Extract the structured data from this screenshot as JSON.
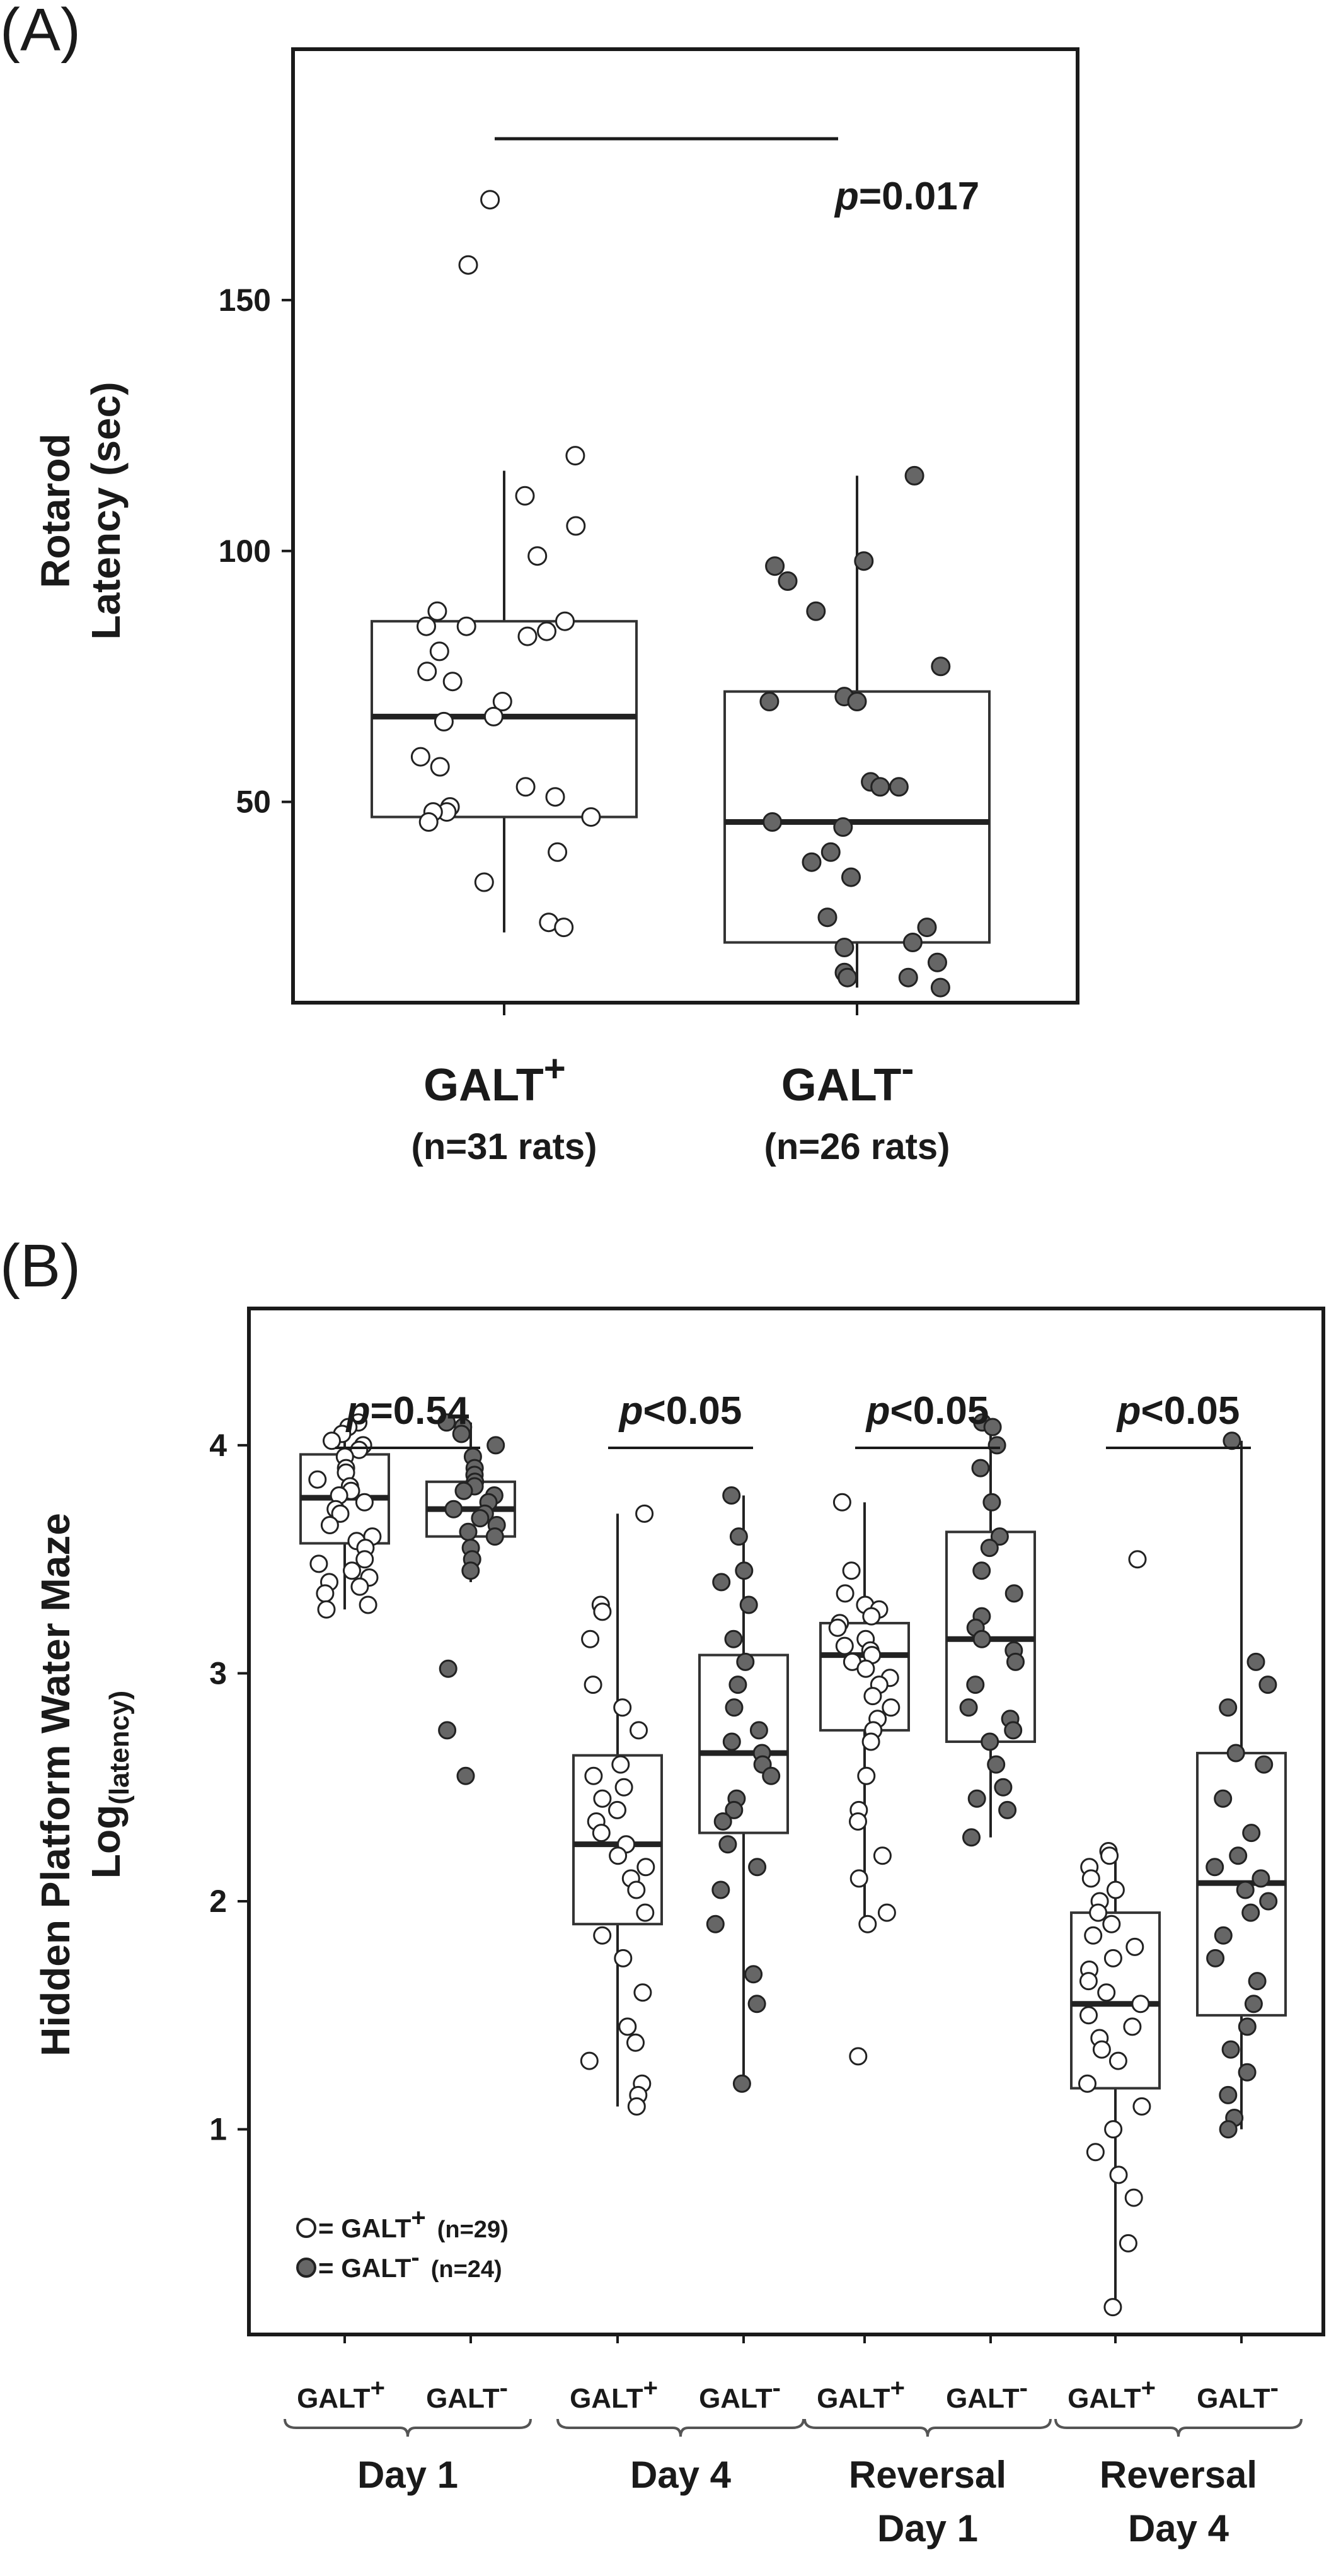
{
  "chart_data": [
    {
      "panel": "(A)",
      "type": "box-scatter",
      "ylabel_line1": "Rotarod",
      "ylabel_line2": "Latency (sec)",
      "yticks": [
        50,
        100,
        150
      ],
      "ylim": [
        10,
        200
      ],
      "pvalue": {
        "italic": "p",
        "rest": "=0.017"
      },
      "groups": [
        {
          "label": "GALT",
          "sup": "+",
          "n_label": "(n=31 rats)",
          "fill": "#ffffff",
          "box": {
            "q1": 47,
            "median": 67,
            "q3": 86,
            "whisker_low": 24,
            "whisker_high": 116
          },
          "points": [
            170,
            157,
            119,
            111,
            105,
            99,
            88,
            86,
            85,
            85,
            84,
            83,
            80,
            76,
            74,
            70,
            67,
            66,
            59,
            57,
            53,
            51,
            49,
            48,
            48,
            47,
            46,
            40,
            34,
            26,
            25
          ]
        },
        {
          "label": "GALT",
          "sup": "-",
          "n_label": "(n=26 rats)",
          "fill": "#666666",
          "box": {
            "q1": 22,
            "median": 46,
            "q3": 72,
            "whisker_low": 13,
            "whisker_high": 115
          },
          "points": [
            115,
            98,
            97,
            94,
            88,
            77,
            71,
            70,
            70,
            54,
            53,
            53,
            46,
            45,
            40,
            38,
            35,
            27,
            25,
            22,
            21,
            18,
            16,
            15,
            15,
            13
          ]
        }
      ]
    },
    {
      "panel": "(B)",
      "type": "box-scatter",
      "ylabel_line1": "Hidden Platform Water Maze",
      "ylabel_line2_main": "Log",
      "ylabel_line2_sub": "(latency)",
      "yticks": [
        1,
        2,
        3,
        4
      ],
      "ylim": [
        0.1,
        4.6
      ],
      "legend": [
        {
          "label": "= GALT",
          "sup": "+",
          "n": "(n=29)",
          "fill": "#ffffff"
        },
        {
          "label": "= GALT",
          "sup": "-",
          "n": "(n=24)",
          "fill": "#666666"
        }
      ],
      "days": [
        {
          "line1": "Day 1",
          "line2": "",
          "pvalue": {
            "italic": "p",
            "rest": "=0.54"
          },
          "boxes": [
            {
              "label": "GALT",
              "sup": "+",
              "fill": "#ffffff",
              "box": {
                "q1": 3.57,
                "median": 3.77,
                "q3": 3.96,
                "whisker_low": 3.28,
                "whisker_high": 4.1
              },
              "points": [
                4.1,
                4.08,
                4.05,
                4.02,
                4.0,
                3.98,
                3.95,
                3.9,
                3.88,
                3.85,
                3.82,
                3.8,
                3.78,
                3.75,
                3.72,
                3.7,
                3.65,
                3.6,
                3.58,
                3.55,
                3.5,
                3.48,
                3.45,
                3.42,
                3.4,
                3.38,
                3.35,
                3.3,
                3.28
              ]
            },
            {
              "label": "GALT",
              "sup": "-",
              "fill": "#666666",
              "box": {
                "q1": 3.6,
                "median": 3.72,
                "q3": 3.84,
                "whisker_low": 3.4,
                "whisker_high": 4.1
              },
              "points": [
                4.1,
                4.08,
                4.05,
                4.0,
                3.95,
                3.9,
                3.87,
                3.84,
                3.82,
                3.8,
                3.78,
                3.75,
                3.72,
                3.7,
                3.68,
                3.65,
                3.62,
                3.6,
                3.55,
                3.5,
                3.45,
                3.02,
                2.75,
                2.55
              ]
            }
          ]
        },
        {
          "line1": "Day 4",
          "line2": "",
          "pvalue": {
            "italic": "p",
            "rest": "<0.05"
          },
          "boxes": [
            {
              "label": "GALT",
              "sup": "+",
              "fill": "#ffffff",
              "box": {
                "q1": 1.9,
                "median": 2.25,
                "q3": 2.64,
                "whisker_low": 1.1,
                "whisker_high": 3.7
              },
              "points": [
                3.7,
                3.3,
                3.27,
                3.15,
                2.95,
                2.85,
                2.75,
                2.6,
                2.55,
                2.5,
                2.45,
                2.4,
                2.35,
                2.3,
                2.25,
                2.2,
                2.15,
                2.1,
                2.05,
                1.95,
                1.85,
                1.75,
                1.6,
                1.45,
                1.38,
                1.3,
                1.2,
                1.15,
                1.1
              ]
            },
            {
              "label": "GALT",
              "sup": "-",
              "fill": "#666666",
              "box": {
                "q1": 2.3,
                "median": 2.65,
                "q3": 3.08,
                "whisker_low": 1.2,
                "whisker_high": 3.78
              },
              "points": [
                3.78,
                3.6,
                3.45,
                3.4,
                3.3,
                3.15,
                3.05,
                2.95,
                2.85,
                2.75,
                2.7,
                2.65,
                2.6,
                2.55,
                2.45,
                2.4,
                2.35,
                2.25,
                2.15,
                2.05,
                1.9,
                1.68,
                1.55,
                1.2
              ]
            }
          ]
        },
        {
          "line1": "Reversal",
          "line2": "Day 1",
          "pvalue": {
            "italic": "p",
            "rest": "<0.05"
          },
          "boxes": [
            {
              "label": "GALT",
              "sup": "+",
              "fill": "#ffffff",
              "box": {
                "q1": 2.75,
                "median": 3.08,
                "q3": 3.22,
                "whisker_low": 1.9,
                "whisker_high": 3.75
              },
              "points": [
                3.75,
                3.45,
                3.35,
                3.3,
                3.28,
                3.25,
                3.22,
                3.2,
                3.15,
                3.12,
                3.1,
                3.08,
                3.05,
                3.02,
                2.98,
                2.95,
                2.9,
                2.85,
                2.8,
                2.75,
                2.7,
                2.55,
                2.4,
                2.35,
                2.2,
                2.1,
                1.95,
                1.9,
                1.32
              ]
            },
            {
              "label": "GALT",
              "sup": "-",
              "fill": "#666666",
              "box": {
                "q1": 2.7,
                "median": 3.15,
                "q3": 3.62,
                "whisker_low": 2.28,
                "whisker_high": 4.1
              },
              "points": [
                4.1,
                4.08,
                4.0,
                3.9,
                3.75,
                3.6,
                3.55,
                3.45,
                3.35,
                3.25,
                3.2,
                3.15,
                3.1,
                3.05,
                2.95,
                2.85,
                2.8,
                2.75,
                2.7,
                2.6,
                2.5,
                2.45,
                2.4,
                2.28
              ]
            }
          ]
        },
        {
          "line1": "Reversal",
          "line2": "Day 4",
          "pvalue": {
            "italic": "p",
            "rest": "<0.05"
          },
          "boxes": [
            {
              "label": "GALT",
              "sup": "+",
              "fill": "#ffffff",
              "box": {
                "q1": 1.18,
                "median": 1.55,
                "q3": 1.95,
                "whisker_low": 0.22,
                "whisker_high": 2.22
              },
              "points": [
                3.5,
                2.22,
                2.2,
                2.15,
                2.1,
                2.05,
                2.0,
                1.95,
                1.9,
                1.85,
                1.8,
                1.75,
                1.7,
                1.65,
                1.6,
                1.55,
                1.5,
                1.45,
                1.4,
                1.35,
                1.3,
                1.2,
                1.1,
                1.0,
                0.9,
                0.8,
                0.7,
                0.5,
                0.22
              ]
            },
            {
              "label": "GALT",
              "sup": "-",
              "fill": "#666666",
              "box": {
                "q1": 1.5,
                "median": 2.08,
                "q3": 2.65,
                "whisker_low": 1.0,
                "whisker_high": 4.02
              },
              "points": [
                4.02,
                3.05,
                2.95,
                2.85,
                2.65,
                2.6,
                2.45,
                2.3,
                2.2,
                2.15,
                2.1,
                2.05,
                2.0,
                1.95,
                1.85,
                1.75,
                1.65,
                1.55,
                1.45,
                1.35,
                1.25,
                1.15,
                1.05,
                1.0
              ]
            }
          ]
        }
      ]
    }
  ]
}
